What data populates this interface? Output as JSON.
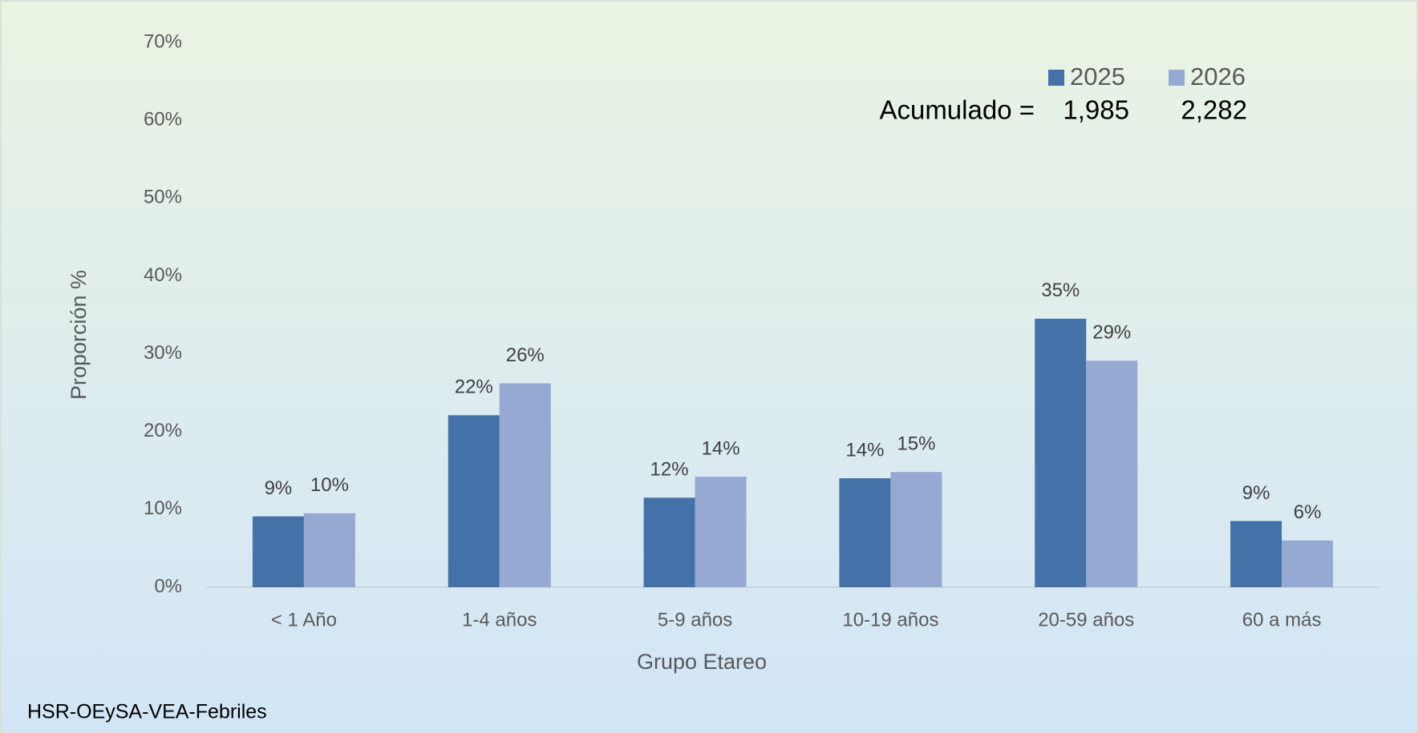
{
  "chart_data": {
    "type": "bar",
    "x_label": "Grupo Etareo",
    "y_label": "Proporción %",
    "categories": [
      "< 1 Año",
      "1-4 años",
      "5-9 años",
      "10-19 años",
      "20-59 años",
      "60 a más"
    ],
    "series": [
      {
        "name": "2025",
        "color": "#4472a8",
        "values": [
          9.1,
          22.1,
          11.5,
          14.0,
          34.5,
          8.5
        ],
        "value_labels": [
          "9%",
          "22%",
          "12%",
          "14%",
          "35%",
          "9%"
        ]
      },
      {
        "name": "2026",
        "color": "#95a9d2",
        "values": [
          9.5,
          26.2,
          14.2,
          14.8,
          29.1,
          6.0
        ],
        "value_labels": [
          "10%",
          "26%",
          "14%",
          "15%",
          "29%",
          "6%"
        ]
      }
    ],
    "ylim": [
      0,
      70
    ],
    "yticks": [
      {
        "value": 0,
        "label": "0%"
      },
      {
        "value": 10,
        "label": "10%"
      },
      {
        "value": 20,
        "label": "20%"
      },
      {
        "value": 30,
        "label": "30%"
      },
      {
        "value": 40,
        "label": "40%"
      },
      {
        "value": 50,
        "label": "50%"
      },
      {
        "value": 60,
        "label": "60%"
      },
      {
        "value": 70,
        "label": "70%"
      }
    ],
    "grid": false,
    "legend": "upper right",
    "annotation": {
      "label": "Acumulado =",
      "values": [
        1985,
        2282
      ],
      "value_labels": [
        "1,985",
        "2,282"
      ]
    },
    "footer": "HSR-OEySA-VEA-Febriles"
  }
}
